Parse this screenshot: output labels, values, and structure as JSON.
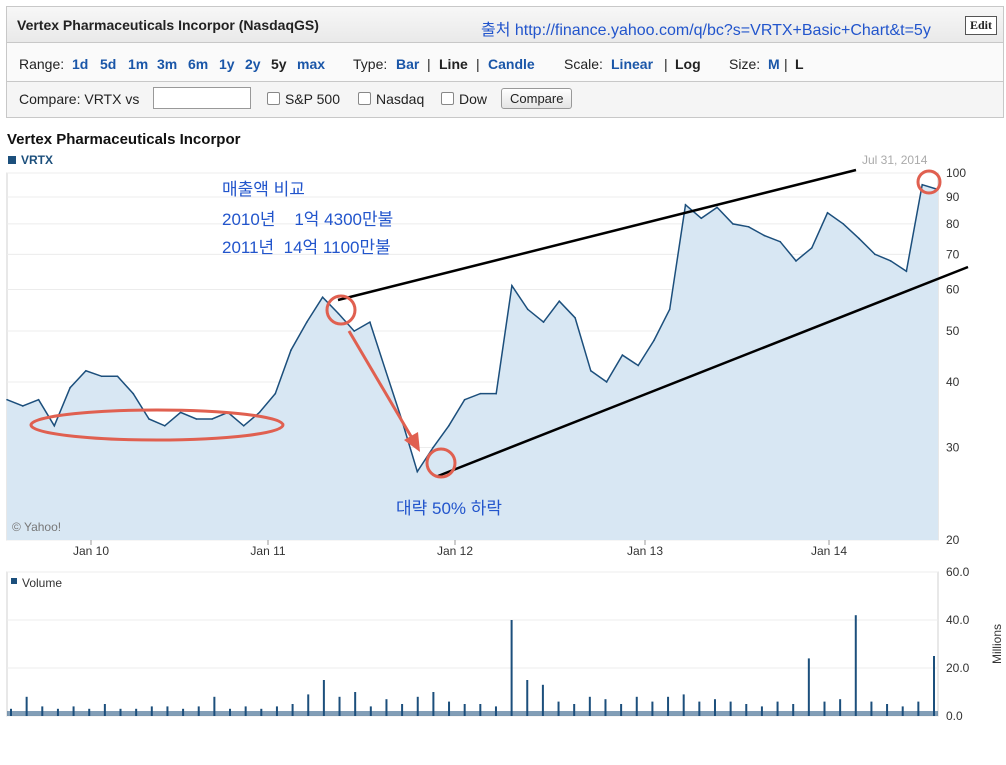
{
  "header": {
    "title": "Vertex Pharmaceuticals Incorpor (NasdaqGS)",
    "source": "출처 http://finance.yahoo.com/q/bc?s=VRTX+Basic+Chart&t=5y",
    "edit_label": "Edit"
  },
  "controls": {
    "range_label": "Range:",
    "ranges": [
      "1d",
      "5d",
      "1m",
      "3m",
      "6m",
      "1y",
      "2y",
      "5y",
      "max"
    ],
    "selected_range": "5y",
    "type_label": "Type:",
    "types": [
      "Bar",
      "Line",
      "Candle"
    ],
    "selected_type": "Line",
    "scale_label": "Scale:",
    "scales": [
      "Linear",
      "Log"
    ],
    "selected_scale": "Log",
    "size_label": "Size:",
    "sizes": [
      "M",
      "L"
    ],
    "selected_size": "L",
    "separator": "|"
  },
  "compare": {
    "label": "Compare: VRTX vs",
    "input_value": "",
    "options": [
      "S&P 500",
      "Nasdaq",
      "Dow"
    ],
    "button_label": "Compare"
  },
  "chart_title": "Vertex Pharmaceuticals Incorpor",
  "legend_ticker": "VRTX",
  "date_label": "Jul 31, 2014",
  "copyright": "© Yahoo!",
  "annotations": {
    "revenue_title": "매출액 비교",
    "revenue_2010": "2010년    1억 4300만불",
    "revenue_2011": "2011년  14억 1100만불",
    "drop_note": "대략 50% 하락"
  },
  "colors": {
    "line": "#1c4f7c",
    "area_fill": "#d8e7f3",
    "annotation_text": "#2255cc",
    "ellipse": "#e06050",
    "arrow": "#e06050",
    "trendline": "#000000"
  },
  "chart_data": [
    {
      "type": "area",
      "title": "Vertex Pharmaceuticals Incorpor",
      "series": [
        {
          "name": "VRTX"
        }
      ],
      "scale": "log",
      "ylim": [
        20,
        100
      ],
      "yticks": [
        20,
        30,
        40,
        50,
        60,
        70,
        80,
        90,
        100
      ],
      "xticks": [
        "Jan 10",
        "Jan 11",
        "Jan 12",
        "Jan 13",
        "Jan 14"
      ],
      "x": [
        "2009-08",
        "2009-09",
        "2009-10",
        "2009-11",
        "2009-12",
        "2010-01",
        "2010-02",
        "2010-03",
        "2010-04",
        "2010-05",
        "2010-06",
        "2010-07",
        "2010-08",
        "2010-09",
        "2010-10",
        "2010-11",
        "2010-12",
        "2011-01",
        "2011-02",
        "2011-03",
        "2011-04",
        "2011-05",
        "2011-06",
        "2011-07",
        "2011-08",
        "2011-09",
        "2011-10",
        "2011-11",
        "2011-12",
        "2012-01",
        "2012-02",
        "2012-03",
        "2012-04",
        "2012-05",
        "2012-06",
        "2012-07",
        "2012-08",
        "2012-09",
        "2012-10",
        "2012-11",
        "2012-12",
        "2013-01",
        "2013-02",
        "2013-03",
        "2013-04",
        "2013-05",
        "2013-06",
        "2013-07",
        "2013-08",
        "2013-09",
        "2013-10",
        "2013-11",
        "2013-12",
        "2014-01",
        "2014-02",
        "2014-03",
        "2014-04",
        "2014-05",
        "2014-06",
        "2014-07"
      ],
      "values": [
        37,
        36,
        37,
        33,
        39,
        42,
        41,
        41,
        38,
        34,
        33,
        35,
        34,
        34,
        35,
        33,
        35,
        38,
        46,
        52,
        58,
        54,
        50,
        52,
        42,
        34,
        27,
        30,
        33,
        37,
        38,
        38,
        61,
        55,
        52,
        57,
        53,
        42,
        40,
        45,
        43,
        48,
        55,
        87,
        82,
        86,
        80,
        79,
        76,
        74,
        68,
        72,
        84,
        80,
        75,
        70,
        68,
        65,
        95,
        93
      ]
    },
    {
      "type": "bar",
      "title": "Volume",
      "series": [
        {
          "name": "Volume"
        }
      ],
      "ylabel": "Millions",
      "ylim": [
        0,
        60
      ],
      "yticks": [
        "0.0",
        "20.0",
        "40.0",
        "60.0"
      ],
      "x": [
        "2009-08",
        "2009-09",
        "2009-10",
        "2009-11",
        "2009-12",
        "2010-01",
        "2010-02",
        "2010-03",
        "2010-04",
        "2010-05",
        "2010-06",
        "2010-07",
        "2010-08",
        "2010-09",
        "2010-10",
        "2010-11",
        "2010-12",
        "2011-01",
        "2011-02",
        "2011-03",
        "2011-04",
        "2011-05",
        "2011-06",
        "2011-07",
        "2011-08",
        "2011-09",
        "2011-10",
        "2011-11",
        "2011-12",
        "2012-01",
        "2012-02",
        "2012-03",
        "2012-04",
        "2012-05",
        "2012-06",
        "2012-07",
        "2012-08",
        "2012-09",
        "2012-10",
        "2012-11",
        "2012-12",
        "2013-01",
        "2013-02",
        "2013-03",
        "2013-04",
        "2013-05",
        "2013-06",
        "2013-07",
        "2013-08",
        "2013-09",
        "2013-10",
        "2013-11",
        "2013-12",
        "2014-01",
        "2014-02",
        "2014-03",
        "2014-04",
        "2014-05",
        "2014-06",
        "2014-07"
      ],
      "values": [
        3,
        8,
        4,
        3,
        4,
        3,
        5,
        3,
        3,
        4,
        4,
        3,
        4,
        8,
        3,
        4,
        3,
        4,
        5,
        9,
        15,
        8,
        10,
        4,
        7,
        5,
        8,
        10,
        6,
        5,
        5,
        4,
        40,
        15,
        13,
        6,
        5,
        8,
        7,
        5,
        8,
        6,
        8,
        9,
        6,
        7,
        6,
        5,
        4,
        6,
        5,
        24,
        6,
        7,
        42,
        6,
        5,
        4,
        6,
        25
      ]
    }
  ]
}
